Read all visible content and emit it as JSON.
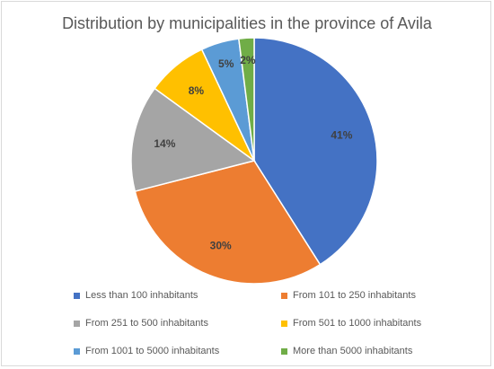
{
  "chart_data": {
    "type": "pie",
    "title": "Distribution by municipalities in the province of Avila",
    "legend_position": "bottom",
    "slices": [
      {
        "label": "Less than 100 inhabitants",
        "value": 41,
        "display": "41%",
        "color": "#4472c4"
      },
      {
        "label": "From 101 to 250 inhabitants",
        "value": 30,
        "display": "30%",
        "color": "#ed7d31"
      },
      {
        "label": "From 251 to 500 inhabitants",
        "value": 14,
        "display": "14%",
        "color": "#a5a5a5"
      },
      {
        "label": "From 501 to 1000 inhabitants",
        "value": 8,
        "display": "8%",
        "color": "#ffc000"
      },
      {
        "label": "From 1001 to 5000 inhabitants",
        "value": 5,
        "display": "5%",
        "color": "#5b9bd5"
      },
      {
        "label": "More than 5000 inhabitants",
        "value": 2,
        "display": "2%",
        "color": "#70ad47"
      }
    ]
  }
}
